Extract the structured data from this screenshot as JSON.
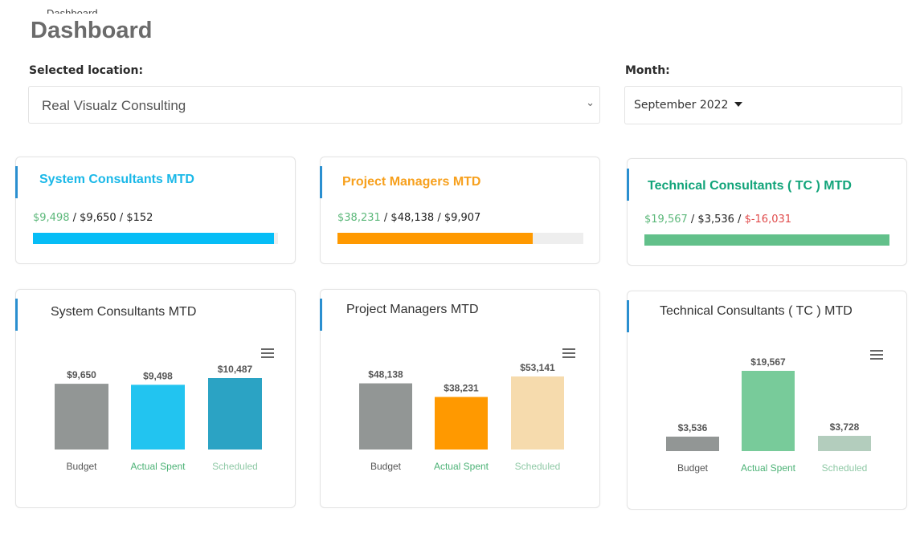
{
  "breadcrumb_cut": "Dashboard",
  "page_title": "Dashboard",
  "location": {
    "label": "Selected location:",
    "value": "Real Visualz Consulting"
  },
  "month": {
    "label": "Month:",
    "value": "September 2022"
  },
  "summary_cards": [
    {
      "title": "System Consultants MTD",
      "title_color": "#1ab8e8",
      "actual": "$9,498",
      "budget": "$9,650",
      "remaining": "$152",
      "remaining_negative": false,
      "bar_color": "#06bdf6",
      "bar_fraction": 0.985
    },
    {
      "title": "Project Managers MTD",
      "title_color": "#f7a01d",
      "actual": "$38,231",
      "budget": "$48,138",
      "remaining": "$9,907",
      "remaining_negative": false,
      "bar_color": "#ff9900",
      "bar_fraction": 0.794
    },
    {
      "title": "Technical Consultants ( TC ) MTD",
      "title_color": "#12a47a",
      "actual": "$19,567",
      "budget": "$3,536",
      "remaining": "$-16,031",
      "remaining_negative": true,
      "bar_color": "#62c08a",
      "bar_fraction": 1.0
    }
  ],
  "chart_data": [
    {
      "type": "bar",
      "title": "System Consultants MTD",
      "categories": [
        "Budget",
        "Actual Spent",
        "Scheduled"
      ],
      "values": [
        9650,
        9498,
        10487
      ],
      "value_labels": [
        "$9,650",
        "$9,498",
        "$10,487"
      ],
      "colors": [
        "#929695",
        "#22c4f0",
        "#2ba3c4"
      ],
      "label_colors": [
        "#555555",
        "#4cb276",
        "#8fc9a6"
      ],
      "ylim": [
        0,
        10487
      ]
    },
    {
      "type": "bar",
      "title": "Project Managers MTD",
      "categories": [
        "Budget",
        "Actual Spent",
        "Scheduled"
      ],
      "values": [
        48138,
        38231,
        53141
      ],
      "value_labels": [
        "$48,138",
        "$38,231",
        "$53,141"
      ],
      "colors": [
        "#929695",
        "#ff9900",
        "#f6dbad"
      ],
      "label_colors": [
        "#555555",
        "#4cb276",
        "#8fc9a6"
      ],
      "ylim": [
        0,
        53141
      ]
    },
    {
      "type": "bar",
      "title": "Technical Consultants ( TC ) MTD",
      "categories": [
        "Budget",
        "Actual Spent",
        "Scheduled"
      ],
      "values": [
        3536,
        19567,
        3728
      ],
      "value_labels": [
        "$3,536",
        "$19,567",
        "$3,728"
      ],
      "colors": [
        "#929695",
        "#78cb9a",
        "#b3cdbd"
      ],
      "label_colors": [
        "#555555",
        "#4cb276",
        "#8fc9a6"
      ],
      "ylim": [
        0,
        19567
      ]
    }
  ]
}
